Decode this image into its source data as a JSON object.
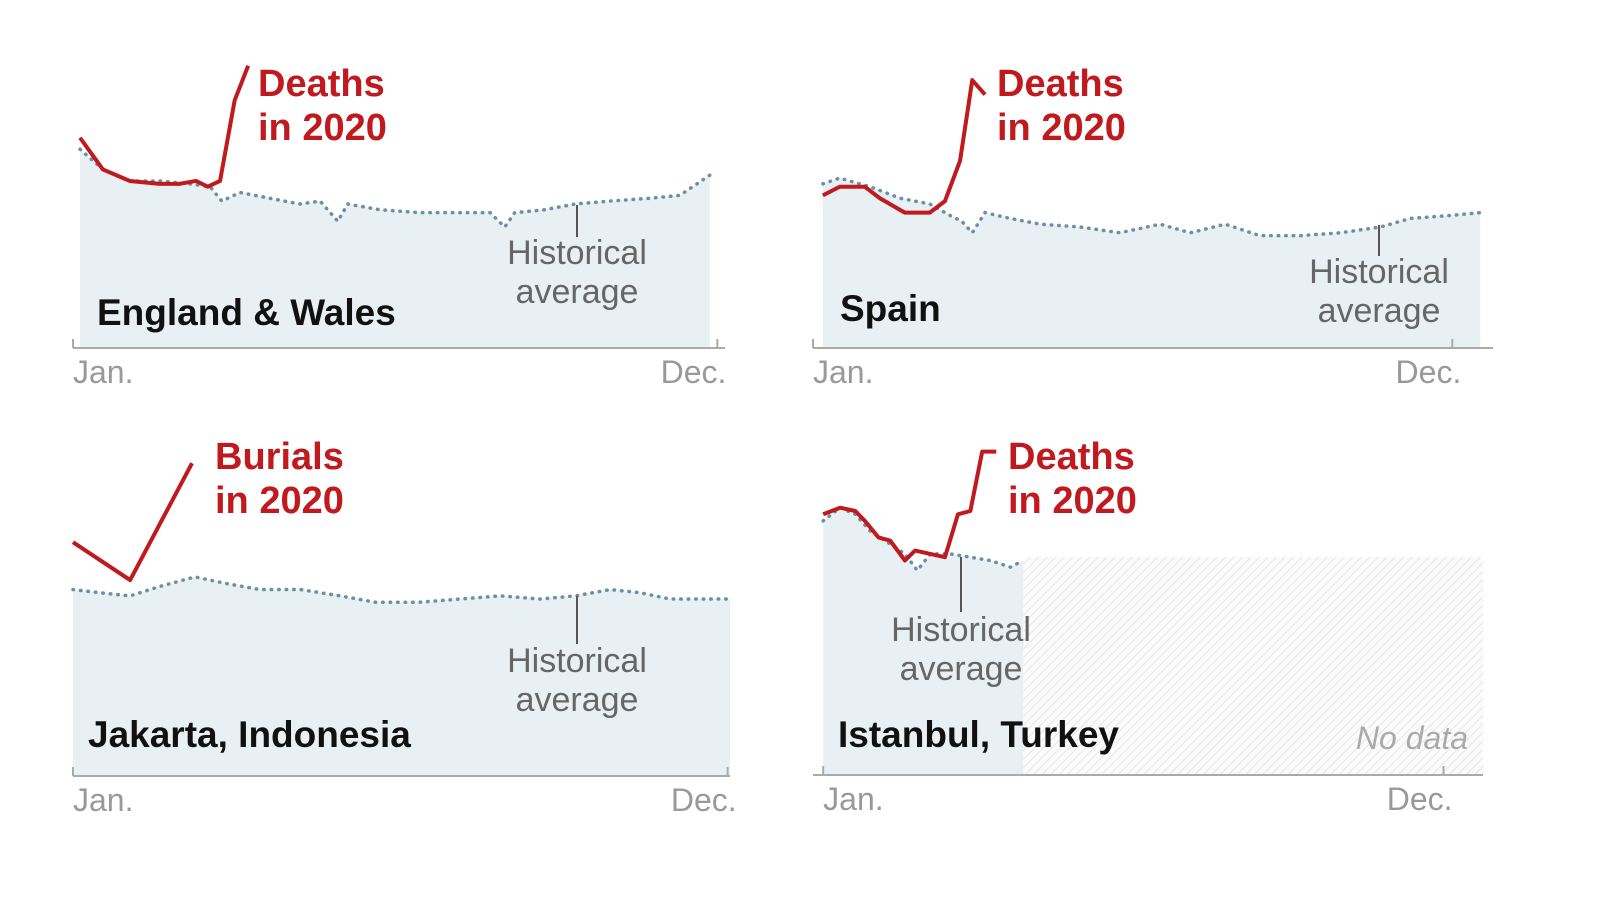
{
  "chart_data": [
    {
      "type": "line",
      "title": "England & Wales",
      "xlim": [
        1,
        12.13
      ],
      "ylim": [
        0,
        100
      ],
      "xticks": [
        {
          "value": 1,
          "label": "Jan."
        },
        {
          "value": 12,
          "label": "Dec."
        }
      ],
      "series": [
        {
          "name": "Historical average",
          "color": "#6d8fa3",
          "style": "dotted",
          "x": [
            1.12,
            1.51,
            1.97,
            2.48,
            2.99,
            3.34,
            3.54,
            3.85,
            4.36,
            4.87,
            5.22,
            5.52,
            5.69,
            6.24,
            6.92,
            7.6,
            8.12,
            8.37,
            8.54,
            9.05,
            9.57,
            10.16,
            10.85,
            11.36,
            11.87
          ],
          "values": [
            69,
            62,
            58,
            58,
            57,
            56,
            51,
            54,
            52,
            50,
            51,
            44,
            50,
            48,
            47,
            47,
            47,
            42,
            47,
            48,
            50,
            51,
            52,
            53,
            60
          ]
        },
        {
          "name": "Deaths in 2020",
          "color": "#c0191e",
          "style": "solid",
          "x": [
            1.12,
            1.51,
            1.97,
            2.48,
            2.82,
            3.1,
            3.3,
            3.51,
            3.76,
            3.99
          ],
          "values": [
            73,
            62,
            58,
            57,
            57,
            58,
            56,
            58,
            86,
            98
          ]
        }
      ]
    },
    {
      "type": "line",
      "title": "Spain",
      "xlim": [
        1,
        12.7
      ],
      "ylim": [
        0,
        100
      ],
      "xticks": [
        {
          "value": 1,
          "label": "Jan."
        },
        {
          "value": 12,
          "label": "Dec."
        }
      ],
      "series": [
        {
          "name": "Historical average",
          "color": "#6d8fa3",
          "style": "dotted",
          "x": [
            1.17,
            1.46,
            1.98,
            2.5,
            3.01,
            3.36,
            3.56,
            3.74,
            3.96,
            4.39,
            4.91,
            5.6,
            6.28,
            6.97,
            7.49,
            8.09,
            8.69,
            9.38,
            10.07,
            10.76,
            11.28,
            11.96,
            12.48
          ],
          "values": [
            57,
            59,
            56,
            52,
            50,
            46,
            44,
            40,
            47,
            45,
            43,
            42,
            40,
            43,
            40,
            43,
            39,
            39,
            40,
            42,
            45,
            46,
            47
          ]
        },
        {
          "name": "Deaths in 2020",
          "color": "#c0191e",
          "style": "solid",
          "x": [
            1.17,
            1.46,
            1.89,
            2.15,
            2.58,
            3.01,
            3.27,
            3.53,
            3.74,
            3.96
          ],
          "values": [
            53,
            56,
            56,
            52,
            47,
            47,
            51,
            65,
            93,
            88
          ]
        }
      ]
    },
    {
      "type": "line",
      "title": "Jakarta, Indonesia",
      "xlim": [
        1,
        12.04
      ],
      "ylim": [
        0,
        100
      ],
      "xticks": [
        {
          "value": 1,
          "label": "Jan."
        },
        {
          "value": 12,
          "label": "Dec."
        }
      ],
      "series": [
        {
          "name": "Historical average",
          "color": "#6d8fa3",
          "style": "dotted",
          "x": [
            1,
            1.45,
            1.96,
            2.46,
            3.05,
            3.55,
            4.14,
            4.82,
            5.49,
            6.08,
            6.83,
            7.5,
            8.18,
            8.85,
            9.44,
            10.03,
            10.53,
            11.03,
            11.54,
            12.04
          ],
          "values": [
            59,
            58,
            57,
            60,
            63,
            61,
            59,
            59,
            57,
            55,
            55,
            56,
            57,
            56,
            57,
            59,
            58,
            56,
            56,
            56
          ]
        },
        {
          "name": "Burials in 2020",
          "color": "#c0191e",
          "style": "solid",
          "x": [
            1,
            1.96,
            3
          ],
          "values": [
            74,
            62,
            99
          ]
        }
      ]
    },
    {
      "type": "line",
      "title": "Istanbul, Turkey",
      "xlim": [
        0.82,
        12.7
      ],
      "ylim": [
        0,
        100
      ],
      "no_data": "No data",
      "xticks": [
        {
          "value": 1,
          "label": "Jan."
        },
        {
          "value": 12,
          "label": "Dec."
        }
      ],
      "series": [
        {
          "name": "Historical average",
          "color": "#6d8fa3",
          "style": "dotted",
          "x": [
            1,
            1.3,
            1.57,
            1.83,
            2.19,
            2.45,
            2.67,
            2.9,
            3.25,
            3.61,
            3.96,
            4.32,
            4.55
          ],
          "values": [
            77,
            81,
            79,
            74,
            70,
            67,
            62,
            67,
            67,
            66,
            65,
            63,
            65
          ]
        },
        {
          "name": "Deaths in 2020",
          "color": "#c0191e",
          "style": "solid",
          "x": [
            1,
            1.3,
            1.57,
            1.74,
            1.98,
            2.19,
            2.45,
            2.63,
            3.16,
            3.39,
            3.61,
            3.82,
            4.07
          ],
          "values": [
            79,
            81,
            80,
            77,
            72,
            71,
            65,
            68,
            66,
            79,
            80,
            98,
            98
          ]
        }
      ]
    }
  ]
}
